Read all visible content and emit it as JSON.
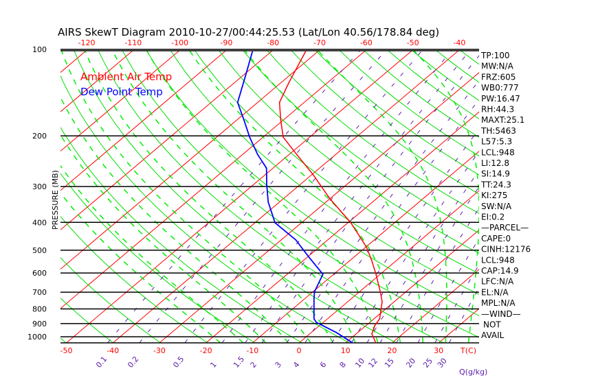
{
  "chart_data": {
    "type": "line",
    "title": "AIRS SkewT Diagram 2010-10-27/00:44:25.53 (Lat/Lon 40.56/178.84 deg)",
    "ylabel": "PRESSURE (MB)",
    "xlabel_bottom": "T(C)",
    "mixing_ratio_label": "Q(g/kg)",
    "ylim": [
      1050,
      100
    ],
    "y_ticks": [
      "100",
      "200",
      "300",
      "400",
      "500",
      "600",
      "700",
      "800",
      "900",
      "1000"
    ],
    "y_tick_values": [
      100,
      200,
      300,
      400,
      500,
      600,
      700,
      800,
      900,
      1000
    ],
    "top_ticks": [
      "-120",
      "-110",
      "-100",
      "-90",
      "-80",
      "-70",
      "-60",
      "-50",
      "-40"
    ],
    "bottom_ticks": [
      "-50",
      "-40",
      "-30",
      "-20",
      "-10",
      "0",
      "10",
      "20",
      "30"
    ],
    "mixing_ratio_ticks": [
      "0.1",
      "0.2",
      "0.5",
      "1",
      "1.5",
      "2",
      "3",
      "4",
      "6",
      "8",
      "10",
      "12",
      "15",
      "20",
      "25",
      "30"
    ],
    "legend": [
      "Ambient Air Temp",
      "Dew Point Temp"
    ],
    "legend_placement": "top-left",
    "colors": {
      "temp": "#ff0000",
      "dewpoint": "#0000ff",
      "isotherm": "#ff0000",
      "dry_adiabat": "#00dd00",
      "moist_adiabat": "#00ee00",
      "mixing_ratio": "#5a1aa8"
    },
    "series": [
      {
        "name": "Ambient Air Temp",
        "pressure": [
          1050,
          978,
          915,
          866,
          755,
          696,
          606,
          543,
          487,
          401,
          331,
          273,
          232,
          202,
          176,
          153,
          130,
          102
        ],
        "temperature": [
          16.5,
          13.4,
          11.9,
          11.2,
          7.4,
          4.4,
          -0.9,
          -5.3,
          -9.9,
          -19.4,
          -30.0,
          -39.7,
          -48.4,
          -55.7,
          -60.6,
          -65.3,
          -68.4,
          -72.6
        ]
      },
      {
        "name": "Dew Point Temp",
        "pressure": [
          1050,
          968,
          891,
          866,
          735,
          696,
          606,
          529,
          460,
          401,
          340,
          297,
          259,
          232,
          202,
          176,
          153,
          123,
          102
        ],
        "temperature": [
          11.5,
          5.5,
          -1.5,
          -2.9,
          -8.1,
          -9.7,
          -12.3,
          -19.6,
          -26.9,
          -35.7,
          -42.4,
          -47.0,
          -51.4,
          -56.8,
          -62.9,
          -68.5,
          -74.3,
          -79.5,
          -84.0
        ]
      }
    ]
  },
  "indices": [
    "TP:100",
    "MW:N/A",
    "FRZ:605",
    "WB0:777",
    "PW:16.47",
    "RH:44.3",
    "MAXT:25.1",
    "TH:5463",
    "L57:5.3",
    "LCL:948",
    "LI:12.8",
    "SI:14.9",
    "TT:24.3",
    "KI:275",
    "SW:N/A",
    "EI:0.2",
    "—PARCEL—",
    "CAPE:0",
    "CINH:12176",
    "LCL:948",
    "CAP:14.9",
    "LFC:N/A",
    "EL:N/A",
    "MPL:N/A",
    "—WIND—",
    "NOT",
    "AVAIL"
  ]
}
